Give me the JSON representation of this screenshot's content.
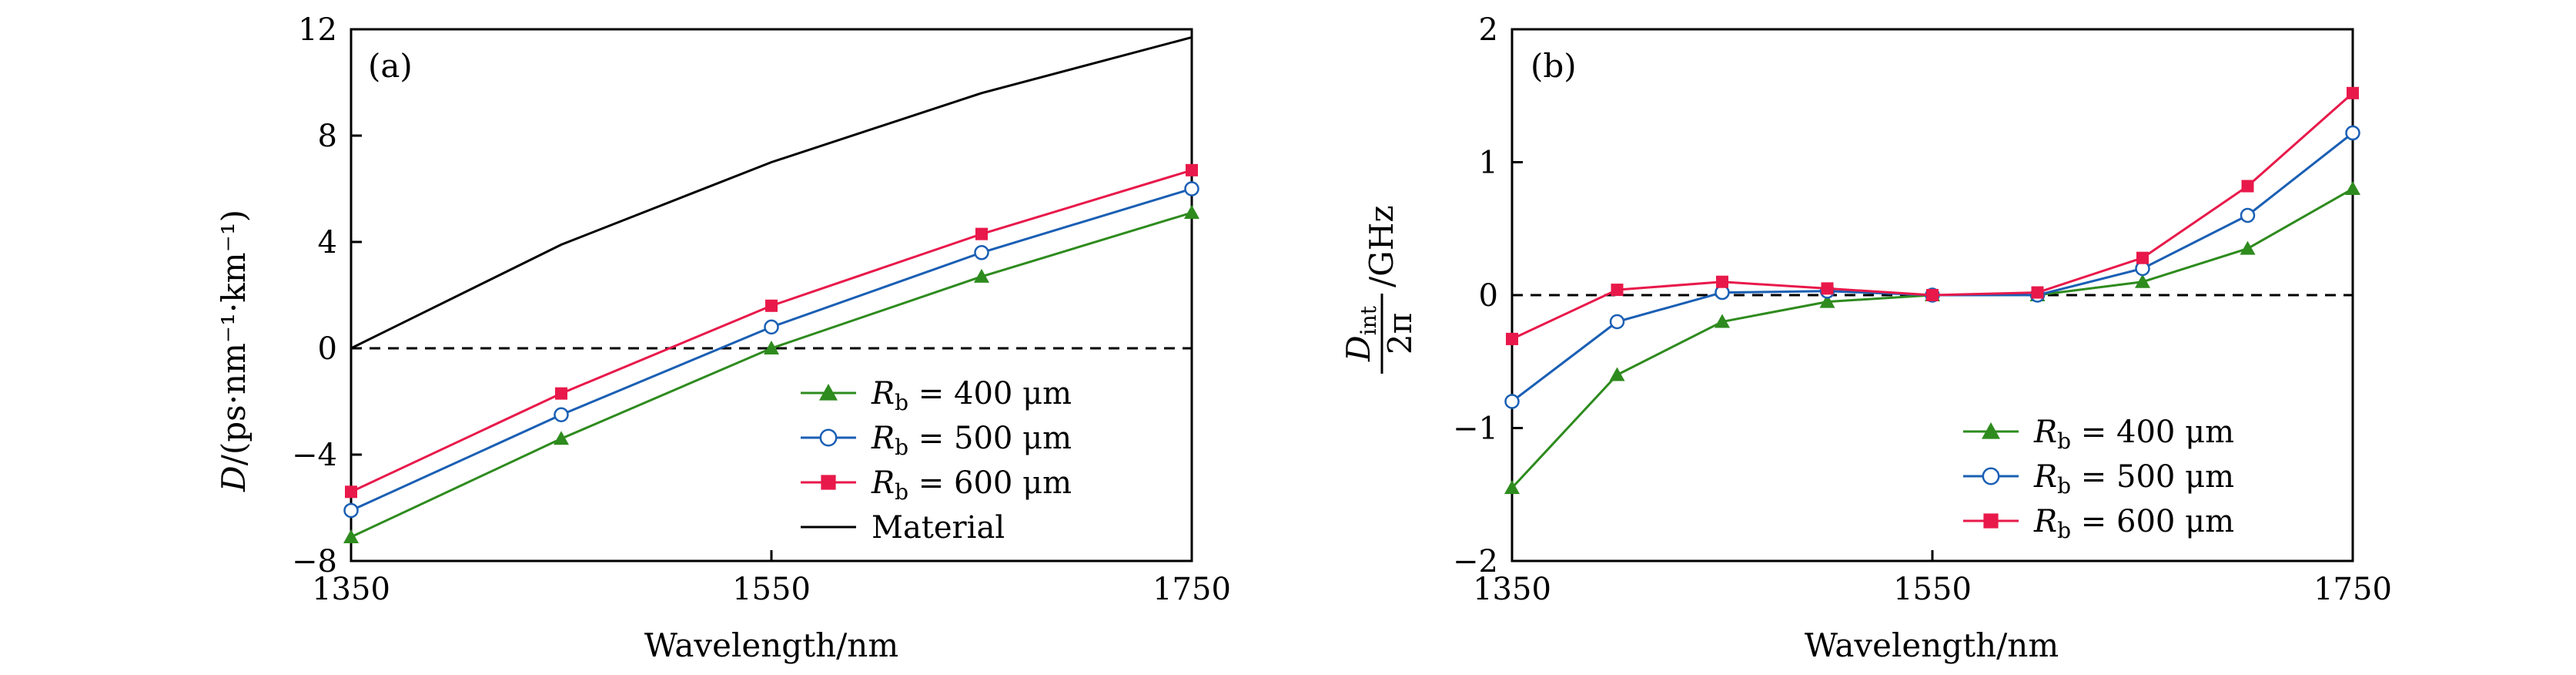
{
  "chart_data": [
    {
      "type": "line",
      "panel_label": "(a)",
      "xlabel": "Wavelength/nm",
      "ylabel_var": "D",
      "ylabel_units": "/(ps·nm⁻¹·km⁻¹)",
      "xlim": [
        1350,
        1750
      ],
      "ylim": [
        -8,
        12
      ],
      "xticks": [
        1350,
        1550,
        1750
      ],
      "xtick_labels": [
        "1350",
        "1550",
        "1750"
      ],
      "yticks": [
        -8,
        -4,
        0,
        4,
        8,
        12
      ],
      "ytick_labels": [
        "−8",
        "−4",
        "0",
        "4",
        "8",
        "12"
      ],
      "zero_line": true,
      "legend_position": "bottom-right",
      "series": [
        {
          "name": "R_b = 400 μm",
          "label_var": "R",
          "label_sub": "b",
          "label_rest": " = 400 μm",
          "color": "#2e8b1e",
          "marker": "triangle",
          "x": [
            1350,
            1450,
            1550,
            1650,
            1750
          ],
          "y": [
            -7.1,
            -3.4,
            0.0,
            2.7,
            5.1
          ]
        },
        {
          "name": "R_b = 500 μm",
          "label_var": "R",
          "label_sub": "b",
          "label_rest": " = 500 μm",
          "color": "#1a5fb4",
          "marker": "circle",
          "x": [
            1350,
            1450,
            1550,
            1650,
            1750
          ],
          "y": [
            -6.1,
            -2.5,
            0.8,
            3.6,
            6.0
          ]
        },
        {
          "name": "R_b = 600 μm",
          "label_var": "R",
          "label_sub": "b",
          "label_rest": " = 600 μm",
          "color": "#e8194a",
          "marker": "square",
          "x": [
            1350,
            1450,
            1550,
            1650,
            1750
          ],
          "y": [
            -5.4,
            -1.7,
            1.6,
            4.3,
            6.7
          ]
        },
        {
          "name": "Material",
          "label_var": "",
          "label_sub": "",
          "label_rest": "Material",
          "color": "#000000",
          "marker": "none",
          "x": [
            1350,
            1450,
            1550,
            1650,
            1750
          ],
          "y": [
            0.0,
            3.9,
            7.0,
            9.6,
            11.7
          ]
        }
      ]
    },
    {
      "type": "line",
      "panel_label": "(b)",
      "xlabel": "Wavelength/nm",
      "ylabel_frac_num": "D",
      "ylabel_frac_num_sub": "int",
      "ylabel_frac_den": "2π",
      "ylabel_units": "/GHz",
      "xlim": [
        1350,
        1750
      ],
      "ylim": [
        -2,
        2
      ],
      "xticks": [
        1350,
        1550,
        1750
      ],
      "xtick_labels": [
        "1350",
        "1550",
        "1750"
      ],
      "yticks": [
        -2,
        -1,
        0,
        1,
        2
      ],
      "ytick_labels": [
        "−2",
        "−1",
        "0",
        "1",
        "2"
      ],
      "zero_line": true,
      "legend_position": "bottom-right",
      "series": [
        {
          "name": "R_b = 400 μm",
          "label_var": "R",
          "label_sub": "b",
          "label_rest": " = 400 μm",
          "color": "#2e8b1e",
          "marker": "triangle",
          "x": [
            1350,
            1400,
            1450,
            1500,
            1550,
            1600,
            1650,
            1700,
            1750
          ],
          "y": [
            -1.45,
            -0.6,
            -0.2,
            -0.05,
            0.0,
            0.0,
            0.1,
            0.35,
            0.8
          ]
        },
        {
          "name": "R_b = 500 μm",
          "label_var": "R",
          "label_sub": "b",
          "label_rest": " = 500 μm",
          "color": "#1a5fb4",
          "marker": "circle",
          "x": [
            1350,
            1400,
            1450,
            1500,
            1550,
            1600,
            1650,
            1700,
            1750
          ],
          "y": [
            -0.8,
            -0.2,
            0.02,
            0.03,
            0.0,
            0.0,
            0.2,
            0.6,
            1.22
          ]
        },
        {
          "name": "R_b = 600 μm",
          "label_var": "R",
          "label_sub": "b",
          "label_rest": " = 600 μm",
          "color": "#e8194a",
          "marker": "square",
          "x": [
            1350,
            1400,
            1450,
            1500,
            1550,
            1600,
            1650,
            1700,
            1750
          ],
          "y": [
            -0.33,
            0.04,
            0.1,
            0.05,
            0.0,
            0.02,
            0.28,
            0.82,
            1.52
          ]
        }
      ]
    }
  ]
}
